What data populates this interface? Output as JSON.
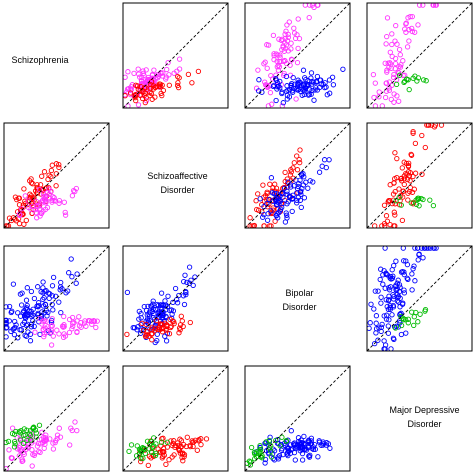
{
  "chart_data": {
    "type": "scatter",
    "layout": "pairwise-matrix",
    "diagonal_reference_line": true,
    "axes_ticks": false,
    "colors": {
      "Schizophrenia": "#ff33ff",
      "Schizoaffective Disorder": "#ff0000",
      "Bipolar Disorder": "#0000ff",
      "Major Depressive Disorder": "#00bb00"
    },
    "diagonal": [
      {
        "lines": [
          "Schizophrenia"
        ]
      },
      {
        "lines": [
          "Schizoaffective",
          "Disorder"
        ]
      },
      {
        "lines": [
          "Bipolar",
          "Disorder"
        ]
      },
      {
        "lines": [
          "Major Depressive",
          "Disorder"
        ]
      }
    ],
    "panels": [
      {
        "row": 0,
        "col": 1,
        "series": [
          {
            "group": "Schizophrenia",
            "cx": 0.22,
            "cy": 0.24,
            "sx": 0.07,
            "sy": 0.07,
            "n": 85,
            "slope": 0.6,
            "tail": 0.38
          },
          {
            "group": "Schizoaffective Disorder",
            "cx": 0.25,
            "cy": 0.16,
            "sx": 0.06,
            "sy": 0.04,
            "n": 55,
            "slope": 0.35,
            "tail": 0.48
          }
        ]
      },
      {
        "row": 0,
        "col": 2,
        "series": [
          {
            "group": "Schizophrenia",
            "cx": 0.32,
            "cy": 0.45,
            "sx": 0.07,
            "sy": 0.14,
            "n": 85,
            "slope": 1.9,
            "tail": 0.38
          },
          {
            "group": "Bipolar Disorder",
            "cx": 0.5,
            "cy": 0.2,
            "sx": 0.12,
            "sy": 0.06,
            "n": 95,
            "slope": 0.25,
            "tail": 0.45
          }
        ]
      },
      {
        "row": 0,
        "col": 3,
        "series": [
          {
            "group": "Schizophrenia",
            "cx": 0.26,
            "cy": 0.45,
            "sx": 0.06,
            "sy": 0.13,
            "n": 75,
            "slope": 2.3,
            "tail": 0.4
          },
          {
            "group": "Major Depressive Disorder",
            "cx": 0.42,
            "cy": 0.25,
            "sx": 0.05,
            "sy": 0.05,
            "n": 14,
            "slope": 0.2,
            "tail": 0.0
          }
        ]
      },
      {
        "row": 1,
        "col": 0,
        "series": [
          {
            "group": "Schizoaffective Disorder",
            "cx": 0.22,
            "cy": 0.22,
            "sx": 0.06,
            "sy": 0.08,
            "n": 85,
            "slope": 1.2,
            "tail": 0.32
          },
          {
            "group": "Schizophrenia",
            "cx": 0.37,
            "cy": 0.22,
            "sx": 0.07,
            "sy": 0.05,
            "n": 55,
            "slope": 0.5,
            "tail": 0.38
          }
        ]
      },
      {
        "row": 1,
        "col": 2,
        "series": [
          {
            "group": "Schizoaffective Disorder",
            "cx": 0.25,
            "cy": 0.25,
            "sx": 0.06,
            "sy": 0.09,
            "n": 70,
            "slope": 1.3,
            "tail": 0.3
          },
          {
            "group": "Bipolar Disorder",
            "cx": 0.38,
            "cy": 0.28,
            "sx": 0.08,
            "sy": 0.07,
            "n": 90,
            "slope": 0.9,
            "tail": 0.45
          }
        ]
      },
      {
        "row": 1,
        "col": 3,
        "series": [
          {
            "group": "Schizoaffective Disorder",
            "cx": 0.32,
            "cy": 0.36,
            "sx": 0.06,
            "sy": 0.13,
            "n": 80,
            "slope": 2.6,
            "tail": 0.4
          },
          {
            "group": "Major Depressive Disorder",
            "cx": 0.48,
            "cy": 0.25,
            "sx": 0.05,
            "sy": 0.04,
            "n": 14,
            "slope": 0.2,
            "tail": 0.0
          }
        ]
      },
      {
        "row": 2,
        "col": 0,
        "series": [
          {
            "group": "Bipolar Disorder",
            "cx": 0.26,
            "cy": 0.35,
            "sx": 0.1,
            "sy": 0.09,
            "n": 120,
            "slope": 1.0,
            "tail": 0.45
          },
          {
            "group": "Schizophrenia",
            "cx": 0.55,
            "cy": 0.23,
            "sx": 0.12,
            "sy": 0.05,
            "n": 55,
            "slope": 0.2,
            "tail": 0.35
          }
        ]
      },
      {
        "row": 2,
        "col": 1,
        "series": [
          {
            "group": "Bipolar Disorder",
            "cx": 0.32,
            "cy": 0.33,
            "sx": 0.08,
            "sy": 0.09,
            "n": 110,
            "slope": 1.1,
            "tail": 0.4
          },
          {
            "group": "Schizoaffective Disorder",
            "cx": 0.35,
            "cy": 0.21,
            "sx": 0.09,
            "sy": 0.04,
            "n": 50,
            "slope": 0.4,
            "tail": 0.45
          }
        ]
      },
      {
        "row": 2,
        "col": 3,
        "series": [
          {
            "group": "Bipolar Disorder",
            "cx": 0.25,
            "cy": 0.5,
            "sx": 0.07,
            "sy": 0.16,
            "n": 130,
            "slope": 2.2,
            "tail": 0.42
          },
          {
            "group": "Major Depressive Disorder",
            "cx": 0.42,
            "cy": 0.3,
            "sx": 0.05,
            "sy": 0.04,
            "n": 16,
            "slope": 0.3,
            "tail": 0.0
          }
        ]
      },
      {
        "row": 3,
        "col": 0,
        "series": [
          {
            "group": "Schizophrenia",
            "cx": 0.3,
            "cy": 0.24,
            "sx": 0.09,
            "sy": 0.07,
            "n": 75,
            "slope": 0.6,
            "tail": 0.4
          },
          {
            "group": "Major Depressive Disorder",
            "cx": 0.18,
            "cy": 0.33,
            "sx": 0.05,
            "sy": 0.05,
            "n": 30,
            "slope": 0.4,
            "tail": 0.0
          }
        ]
      },
      {
        "row": 3,
        "col": 1,
        "series": [
          {
            "group": "Schizoaffective Disorder",
            "cx": 0.4,
            "cy": 0.2,
            "sx": 0.12,
            "sy": 0.05,
            "n": 70,
            "slope": 0.25,
            "tail": 0.4
          },
          {
            "group": "Major Depressive Disorder",
            "cx": 0.2,
            "cy": 0.2,
            "sx": 0.05,
            "sy": 0.05,
            "n": 30,
            "slope": 0.4,
            "tail": 0.0
          }
        ]
      },
      {
        "row": 3,
        "col": 2,
        "series": [
          {
            "group": "Bipolar Disorder",
            "cx": 0.45,
            "cy": 0.22,
            "sx": 0.14,
            "sy": 0.06,
            "n": 110,
            "slope": 0.2,
            "tail": 0.42
          },
          {
            "group": "Major Depressive Disorder",
            "cx": 0.18,
            "cy": 0.18,
            "sx": 0.05,
            "sy": 0.05,
            "n": 30,
            "slope": 0.5,
            "tail": 0.0
          }
        ]
      }
    ]
  }
}
